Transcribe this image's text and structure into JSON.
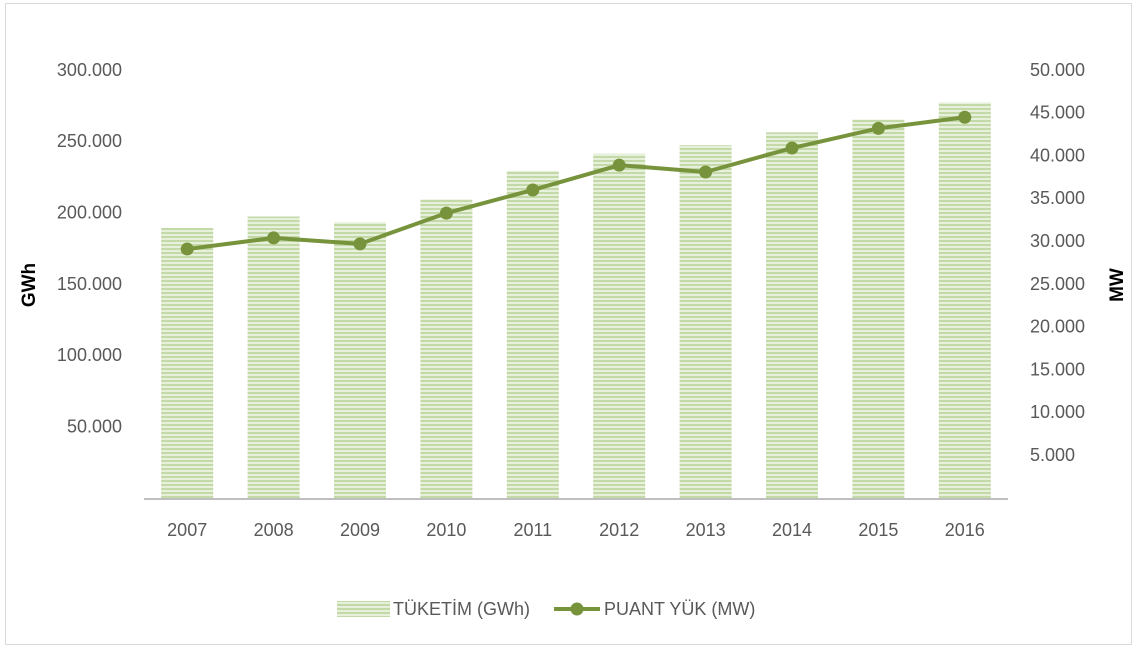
{
  "chart_data": {
    "type": "bar",
    "categories": [
      "2007",
      "2008",
      "2009",
      "2010",
      "2011",
      "2012",
      "2013",
      "2014",
      "2015",
      "2016"
    ],
    "series": [
      {
        "name": "TÜKETİM (GWh)",
        "color": "#c3d9a8",
        "type": "bar",
        "values": [
          190000,
          198000,
          194000,
          210000,
          230000,
          242000,
          248000,
          257000,
          266000,
          278000
        ]
      },
      {
        "name": "PUANT YÜK (MW)",
        "color": "#77933c",
        "type": "line",
        "axis": "y2",
        "values": [
          29200,
          30500,
          29800,
          33400,
          36100,
          39000,
          38200,
          41000,
          43300,
          44600
        ]
      }
    ],
    "ylabel": "GWh",
    "y2label": "MW",
    "ylim": [
      0,
      300000
    ],
    "yticks": [
      {
        "value": 50000,
        "label": "50.000"
      },
      {
        "value": 100000,
        "label": "100.000"
      },
      {
        "value": 150000,
        "label": "150.000"
      },
      {
        "value": 200000,
        "label": "200.000"
      },
      {
        "value": 250000,
        "label": "250.000"
      },
      {
        "value": 300000,
        "label": "300.000"
      }
    ],
    "y2lim": [
      0,
      50000
    ],
    "y2ticks": [
      {
        "value": 5000,
        "label": "5.000"
      },
      {
        "value": 10000,
        "label": "10.000"
      },
      {
        "value": 15000,
        "label": "15.000"
      },
      {
        "value": 20000,
        "label": "20.000"
      },
      {
        "value": 25000,
        "label": "25.000"
      },
      {
        "value": 30000,
        "label": "30.000"
      },
      {
        "value": 35000,
        "label": "35.000"
      },
      {
        "value": 40000,
        "label": "40.000"
      },
      {
        "value": 45000,
        "label": "45.000"
      },
      {
        "value": 50000,
        "label": "50.000"
      }
    ],
    "legend": "bottom"
  }
}
